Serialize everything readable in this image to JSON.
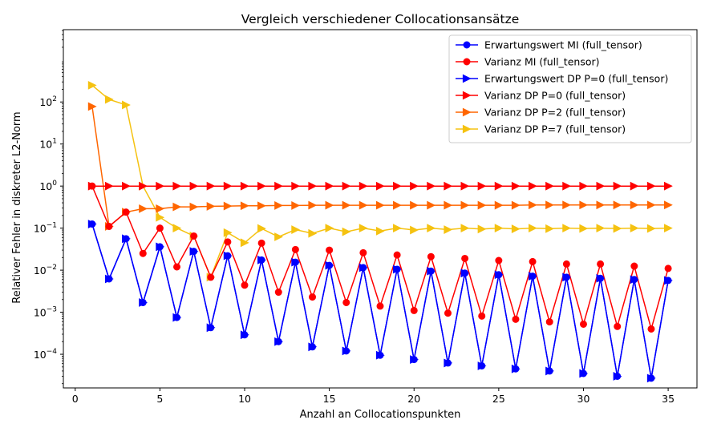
{
  "chart_data": {
    "type": "line",
    "title": "Vergleich verschiedener Collocationsansätze",
    "xlabel": "Anzahl an Collocationspunkten",
    "ylabel": "Relativer Fehler in diskreter L2-Norm",
    "xlim": [
      -0.7,
      36.7
    ],
    "ylog": true,
    "ylim_log10": [
      -4.8,
      3.72
    ],
    "xticks": [
      0,
      5,
      10,
      15,
      20,
      25,
      30,
      35
    ],
    "xtick_labels": [
      "0",
      "5",
      "10",
      "15",
      "20",
      "25",
      "30",
      "35"
    ],
    "yticks_log10": [
      -4,
      -3,
      -2,
      -1,
      0,
      1,
      2
    ],
    "ytick_labels": [
      "10",
      "10",
      "10",
      "10",
      "10",
      "10",
      "10"
    ],
    "ytick_exponents": [
      "−4",
      "−3",
      "−2",
      "−1",
      "0",
      "1",
      "2"
    ],
    "grid": false,
    "legend_position": "top-right",
    "x": [
      1,
      2,
      3,
      4,
      5,
      6,
      7,
      8,
      9,
      10,
      11,
      12,
      13,
      14,
      15,
      16,
      17,
      18,
      19,
      20,
      21,
      22,
      23,
      24,
      25,
      26,
      27,
      28,
      29,
      30,
      31,
      32,
      33,
      34,
      35
    ],
    "series": [
      {
        "name": "Erwartungswert MI (full_tensor)",
        "color": "#0000ff",
        "marker": "circle",
        "values": [
          0.125,
          0.0062,
          0.056,
          0.0017,
          0.036,
          0.00075,
          0.028,
          0.00043,
          0.022,
          0.00029,
          0.0175,
          0.0002,
          0.0155,
          0.00015,
          0.013,
          0.00012,
          0.0115,
          9.5e-05,
          0.0105,
          7.5e-05,
          0.0095,
          6.2e-05,
          0.0085,
          5.3e-05,
          0.0078,
          4.5e-05,
          0.0072,
          4e-05,
          0.0068,
          3.5e-05,
          0.0064,
          3e-05,
          0.006,
          2.7e-05,
          0.0057
        ]
      },
      {
        "name": "Varianz MI (full_tensor)",
        "color": "#ff0000",
        "marker": "circle",
        "values": [
          1.0,
          0.11,
          0.24,
          0.025,
          0.1,
          0.012,
          0.065,
          0.0068,
          0.047,
          0.0044,
          0.044,
          0.003,
          0.031,
          0.0023,
          0.03,
          0.0017,
          0.026,
          0.0014,
          0.023,
          0.0011,
          0.021,
          0.00095,
          0.019,
          0.00081,
          0.017,
          0.00068,
          0.016,
          0.00059,
          0.014,
          0.00052,
          0.014,
          0.00046,
          0.0125,
          0.0004,
          0.011
        ]
      },
      {
        "name": "Erwartungswert DP P=0 (full_tensor)",
        "color": "#0000ff",
        "marker": "triangle-right",
        "values": [
          0.125,
          0.0062,
          0.056,
          0.0017,
          0.036,
          0.00075,
          0.028,
          0.00043,
          0.022,
          0.00029,
          0.0175,
          0.0002,
          0.0155,
          0.00015,
          0.013,
          0.00012,
          0.0115,
          9.5e-05,
          0.0105,
          7.5e-05,
          0.0095,
          6.2e-05,
          0.0085,
          5.3e-05,
          0.0078,
          4.5e-05,
          0.0072,
          4e-05,
          0.0068,
          3.5e-05,
          0.0064,
          3e-05,
          0.006,
          2.7e-05,
          0.0057
        ]
      },
      {
        "name": "Varianz DP P=0 (full_tensor)",
        "color": "#ff0000",
        "marker": "triangle-right",
        "values": [
          1,
          1,
          1,
          1,
          1,
          1,
          1,
          1,
          1,
          1,
          1,
          1,
          1,
          1,
          1,
          1,
          1,
          1,
          1,
          1,
          1,
          1,
          1,
          1,
          1,
          1,
          1,
          1,
          1,
          1,
          1,
          1,
          1,
          1,
          1
        ]
      },
      {
        "name": "Varianz DP P=2 (full_tensor)",
        "color": "#ff6600",
        "marker": "triangle-right",
        "values": [
          78,
          0.11,
          0.24,
          0.29,
          0.29,
          0.32,
          0.32,
          0.33,
          0.335,
          0.34,
          0.34,
          0.345,
          0.345,
          0.35,
          0.35,
          0.35,
          0.35,
          0.35,
          0.35,
          0.35,
          0.35,
          0.35,
          0.35,
          0.35,
          0.35,
          0.35,
          0.355,
          0.355,
          0.355,
          0.355,
          0.355,
          0.355,
          0.355,
          0.355,
          0.355
        ]
      },
      {
        "name": "Varianz DP P=7 (full_tensor)",
        "color": "#f5c211",
        "marker": "triangle-right",
        "values": [
          250,
          115,
          85,
          1.0,
          0.18,
          0.1,
          0.065,
          0.0068,
          0.078,
          0.045,
          0.098,
          0.062,
          0.092,
          0.075,
          0.1,
          0.082,
          0.1,
          0.085,
          0.1,
          0.09,
          0.1,
          0.092,
          0.1,
          0.095,
          0.1,
          0.096,
          0.1,
          0.097,
          0.1,
          0.098,
          0.1,
          0.098,
          0.1,
          0.098,
          0.1
        ]
      }
    ]
  }
}
